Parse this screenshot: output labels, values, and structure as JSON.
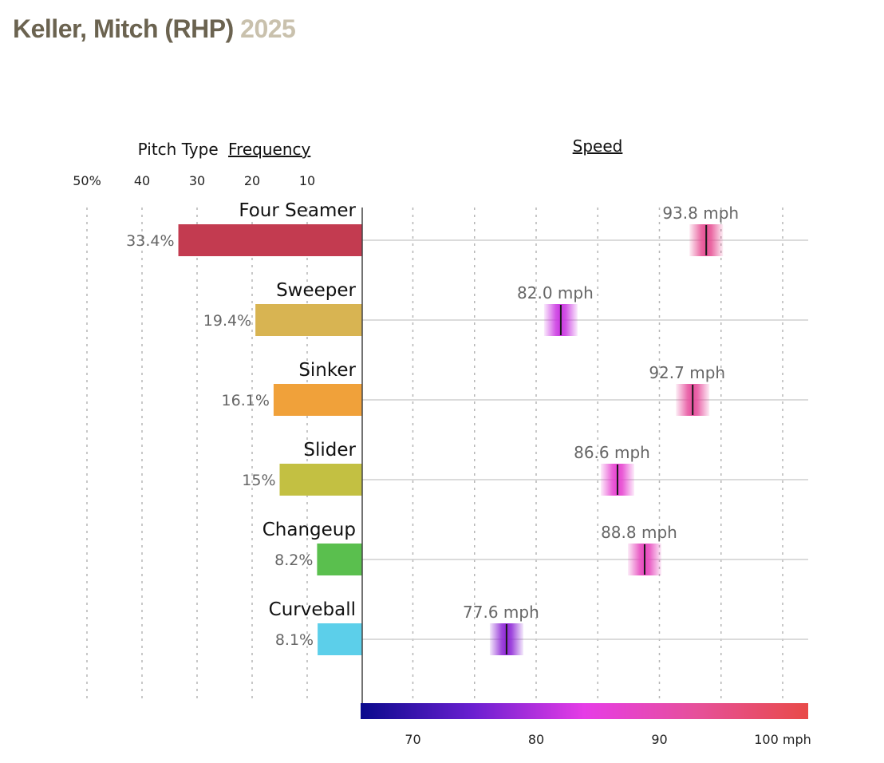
{
  "title": {
    "name": "Keller, Mitch (RHP)",
    "year": "2025"
  },
  "chart_data": {
    "type": "bar",
    "frequency_header_prefix": "Pitch Type",
    "frequency_header_link": "Frequency",
    "speed_header": "Speed",
    "frequency_ticks": [
      "50%",
      "40",
      "30",
      "20",
      "10"
    ],
    "frequency_tick_values": [
      50,
      40,
      30,
      20,
      10
    ],
    "frequency_xlim": [
      0,
      50
    ],
    "speed_ticks": [
      "70",
      "80",
      "90",
      "100 mph"
    ],
    "speed_tick_values": [
      70,
      80,
      90,
      100
    ],
    "speed_xlim": [
      66,
      102
    ],
    "speed_color_scale": [
      "#0a0a8c",
      "#6a1fd0",
      "#e63ce6",
      "#e6509a",
      "#e84a48"
    ],
    "pitches": [
      {
        "name": "Four Seamer",
        "frequency": 33.4,
        "frequency_label": "33.4%",
        "speed": 93.8,
        "speed_label": "93.8 mph",
        "color": "#c33b50"
      },
      {
        "name": "Sweeper",
        "frequency": 19.4,
        "frequency_label": "19.4%",
        "speed": 82.0,
        "speed_label": "82.0 mph",
        "color": "#d8b452"
      },
      {
        "name": "Sinker",
        "frequency": 16.1,
        "frequency_label": "16.1%",
        "speed": 92.7,
        "speed_label": "92.7 mph",
        "color": "#f0a13a"
      },
      {
        "name": "Slider",
        "frequency": 15,
        "frequency_label": "15%",
        "speed": 86.6,
        "speed_label": "86.6 mph",
        "color": "#c3c042"
      },
      {
        "name": "Changeup",
        "frequency": 8.2,
        "frequency_label": "8.2%",
        "speed": 88.8,
        "speed_label": "88.8 mph",
        "color": "#5abf4e"
      },
      {
        "name": "Curveball",
        "frequency": 8.1,
        "frequency_label": "8.1%",
        "speed": 77.6,
        "speed_label": "77.6 mph",
        "color": "#5ccfea"
      }
    ]
  }
}
